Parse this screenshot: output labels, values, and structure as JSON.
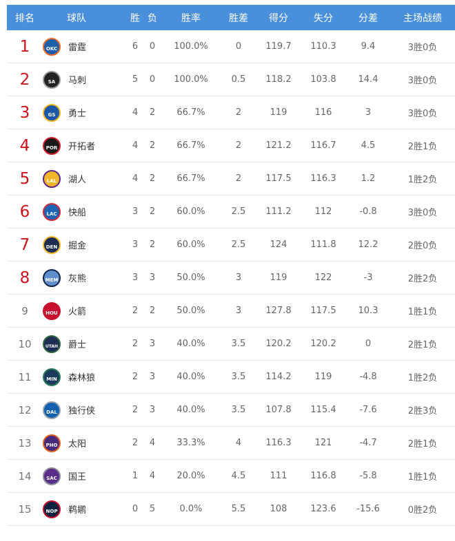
{
  "headers": {
    "rank": "排名",
    "team": "球队",
    "w": "胜",
    "l": "负",
    "pct": "胜率",
    "gb": "胜差",
    "pf": "得分",
    "pa": "失分",
    "diff": "分差",
    "home": "主场战绩"
  },
  "rows": [
    {
      "rank": "1",
      "abbr": "OKC",
      "name": "雷霆",
      "w": "6",
      "l": "0",
      "pct": "100.0%",
      "gb": "0",
      "pf": "119.7",
      "pa": "110.3",
      "diff": "9.4",
      "home": "3胜0负",
      "bg": "#1d5fa8",
      "ring": "#ef6b2c"
    },
    {
      "rank": "2",
      "abbr": "SA",
      "name": "马刺",
      "w": "5",
      "l": "0",
      "pct": "100.0%",
      "gb": "0.5",
      "pf": "118.2",
      "pa": "103.8",
      "diff": "14.4",
      "home": "3胜0负",
      "bg": "#222222",
      "ring": "#9a9a9a"
    },
    {
      "rank": "3",
      "abbr": "GS",
      "name": "勇士",
      "w": "4",
      "l": "2",
      "pct": "66.7%",
      "gb": "2",
      "pf": "119",
      "pa": "116",
      "diff": "3",
      "home": "3胜0负",
      "bg": "#1d57a8",
      "ring": "#f2b51d"
    },
    {
      "rank": "4",
      "abbr": "POR",
      "name": "开拓者",
      "w": "4",
      "l": "2",
      "pct": "66.7%",
      "gb": "2",
      "pf": "121.2",
      "pa": "116.7",
      "diff": "4.5",
      "home": "2胜1负",
      "bg": "#1a1a1a",
      "ring": "#d0202a"
    },
    {
      "rank": "5",
      "abbr": "LAL",
      "name": "湖人",
      "w": "4",
      "l": "2",
      "pct": "66.7%",
      "gb": "2",
      "pf": "117.5",
      "pa": "116.3",
      "diff": "1.2",
      "home": "1胜2负",
      "bg": "#f0b62a",
      "ring": "#5b2a86"
    },
    {
      "rank": "6",
      "abbr": "LAC",
      "name": "快船",
      "w": "3",
      "l": "2",
      "pct": "60.0%",
      "gb": "2.5",
      "pf": "111.2",
      "pa": "112",
      "diff": "-0.8",
      "home": "3胜0负",
      "bg": "#1e64b4",
      "ring": "#d22b37"
    },
    {
      "rank": "7",
      "abbr": "DEN",
      "name": "掘金",
      "w": "3",
      "l": "2",
      "pct": "60.0%",
      "gb": "2.5",
      "pf": "124",
      "pa": "111.8",
      "diff": "12.2",
      "home": "2胜0负",
      "bg": "#1b2d52",
      "ring": "#f0b42a"
    },
    {
      "rank": "8",
      "abbr": "MEM",
      "name": "灰熊",
      "w": "3",
      "l": "3",
      "pct": "50.0%",
      "gb": "3",
      "pf": "119",
      "pa": "122",
      "diff": "-3",
      "home": "2胜2负",
      "bg": "#5f8fcc",
      "ring": "#13254a"
    },
    {
      "rank": "9",
      "abbr": "HOU",
      "name": "火箭",
      "w": "2",
      "l": "2",
      "pct": "50.0%",
      "gb": "3",
      "pf": "127.8",
      "pa": "117.5",
      "diff": "10.3",
      "home": "1胜1负",
      "bg": "#c8102e",
      "ring": "#c8102e"
    },
    {
      "rank": "10",
      "abbr": "UTAH",
      "name": "爵士",
      "w": "2",
      "l": "3",
      "pct": "40.0%",
      "gb": "3.5",
      "pf": "120.2",
      "pa": "120.2",
      "diff": "0",
      "home": "2胜1负",
      "bg": "#1d2d54",
      "ring": "#2f6b3a"
    },
    {
      "rank": "11",
      "abbr": "MIN",
      "name": "森林狼",
      "w": "2",
      "l": "3",
      "pct": "40.0%",
      "gb": "3.5",
      "pf": "114.2",
      "pa": "119",
      "diff": "-4.8",
      "home": "1胜2负",
      "bg": "#1d3a5e",
      "ring": "#2a7a5a"
    },
    {
      "rank": "12",
      "abbr": "DAL",
      "name": "独行侠",
      "w": "2",
      "l": "3",
      "pct": "40.0%",
      "gb": "3.5",
      "pf": "107.8",
      "pa": "115.4",
      "diff": "-7.6",
      "home": "2胜3负",
      "bg": "#1060b0",
      "ring": "#9aa3ad"
    },
    {
      "rank": "13",
      "abbr": "PHO",
      "name": "太阳",
      "w": "2",
      "l": "4",
      "pct": "33.3%",
      "gb": "4",
      "pf": "116.3",
      "pa": "121",
      "diff": "-4.7",
      "home": "2胜1负",
      "bg": "#4a2a7a",
      "ring": "#e56020"
    },
    {
      "rank": "14",
      "abbr": "SAC",
      "name": "国王",
      "w": "1",
      "l": "4",
      "pct": "20.0%",
      "gb": "4.5",
      "pf": "111",
      "pa": "116.8",
      "diff": "-5.8",
      "home": "1胜1负",
      "bg": "#5a2d8a",
      "ring": "#8a8a9a"
    },
    {
      "rank": "15",
      "abbr": "NOP",
      "name": "鹈鹕",
      "w": "0",
      "l": "5",
      "pct": "0.0%",
      "gb": "5.5",
      "pf": "108",
      "pa": "123.6",
      "diff": "-15.6",
      "home": "0胜2负",
      "bg": "#0c2340",
      "ring": "#c8102e"
    }
  ],
  "colors": {
    "header_bg": "#4a8fdc",
    "top_rank": "#d0101b"
  }
}
